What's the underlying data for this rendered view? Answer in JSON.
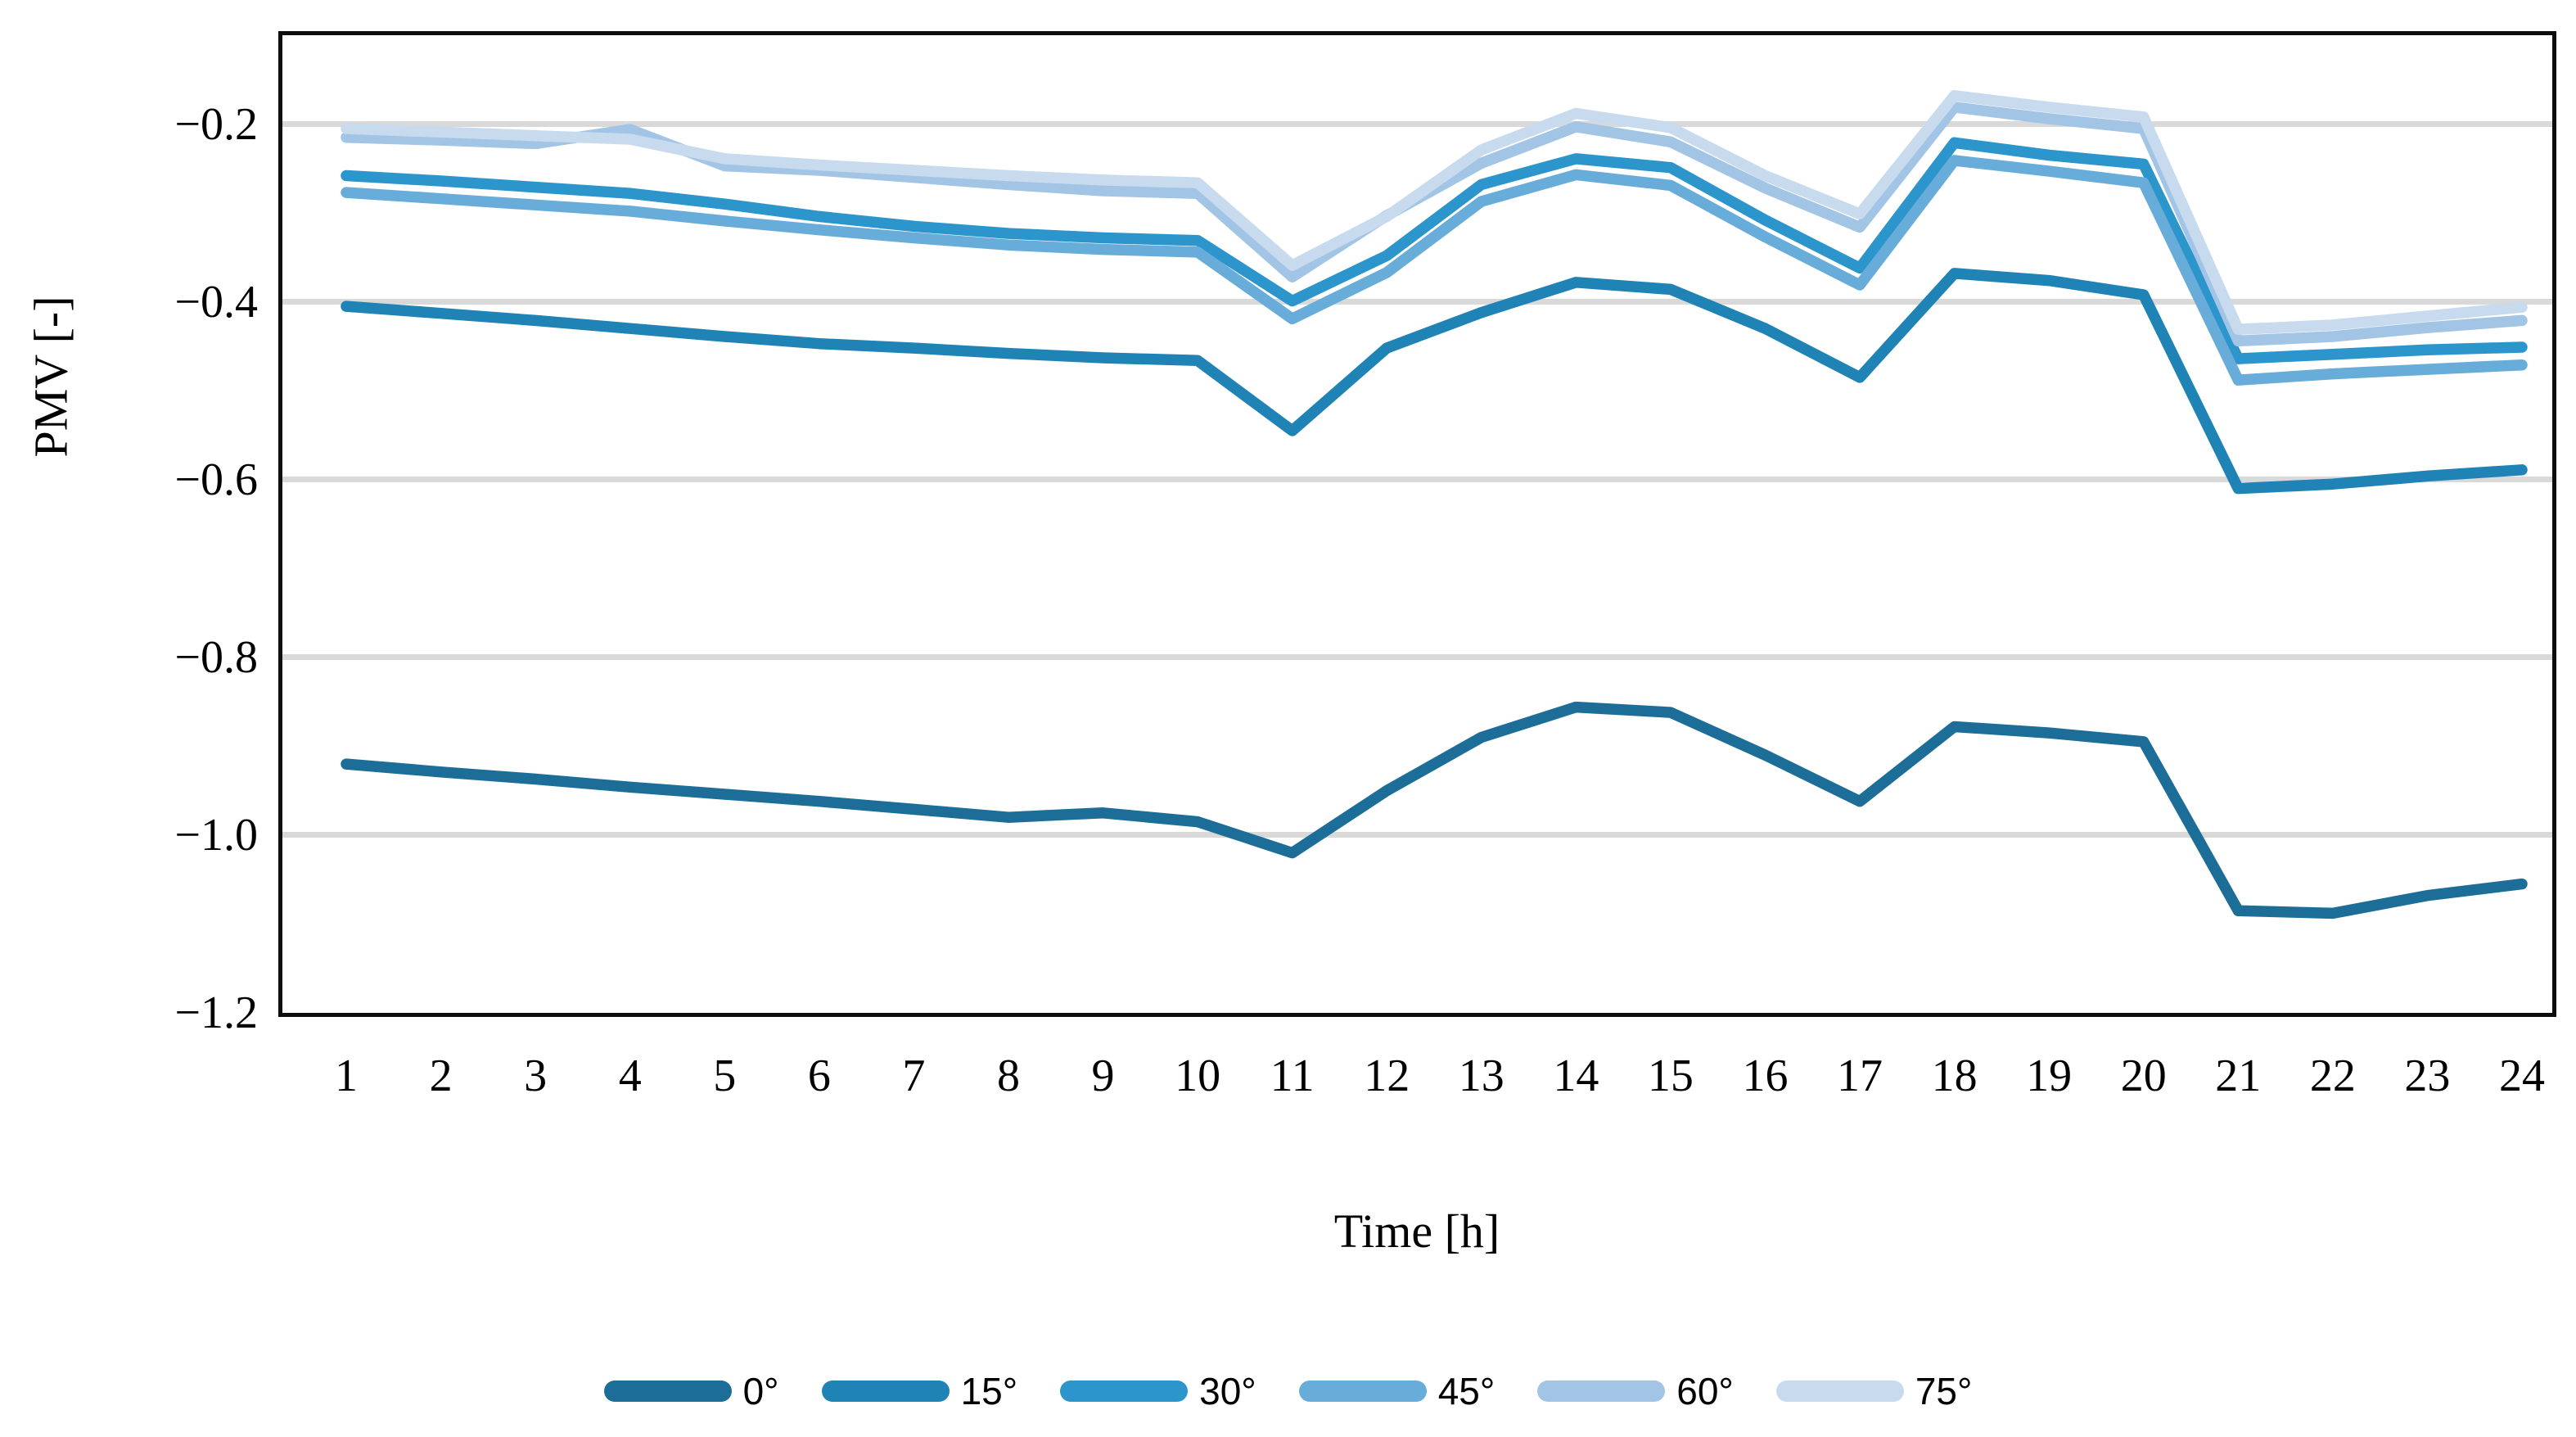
{
  "y_axis": {
    "title": "PMV [-]",
    "min": -1.2,
    "max": -0.1,
    "tick_values": [
      -0.2,
      -0.4,
      -0.6,
      -0.8,
      -1.0,
      -1.2
    ],
    "tick_labels": [
      "−0.2",
      "−0.4",
      "−0.6",
      "−0.8",
      "−1.0",
      "−1.2"
    ]
  },
  "x_axis": {
    "title": "Time [h]",
    "tick_labels": [
      "1",
      "2",
      "3",
      "4",
      "5",
      "6",
      "7",
      "8",
      "9",
      "10",
      "11",
      "12",
      "13",
      "14",
      "15",
      "16",
      "17",
      "18",
      "19",
      "20",
      "21",
      "22",
      "23",
      "24"
    ]
  },
  "colors": {
    "gridline": "#d9d9d9",
    "frame": "#0d0d0d"
  },
  "legend": [
    {
      "label": "0°",
      "color": "#1c6e99"
    },
    {
      "label": "15°",
      "color": "#1f83b5"
    },
    {
      "label": "30°",
      "color": "#2b95cc"
    },
    {
      "label": "45°",
      "color": "#68acda"
    },
    {
      "label": "60°",
      "color": "#a2c4e5"
    },
    {
      "label": "75°",
      "color": "#c8daee"
    }
  ],
  "chart_data": {
    "type": "line",
    "title": "",
    "xlabel": "Time [h]",
    "ylabel": "PMV [-]",
    "ylim": [
      -1.2,
      -0.1
    ],
    "grid": "horizontal",
    "legend_position": "bottom",
    "x": [
      1,
      2,
      3,
      4,
      5,
      6,
      7,
      8,
      9,
      10,
      11,
      12,
      13,
      14,
      15,
      16,
      17,
      18,
      19,
      20,
      21,
      22,
      23,
      24
    ],
    "series": [
      {
        "name": "0°",
        "color": "#1c6e99",
        "values": [
          -0.92,
          -0.929,
          -0.937,
          -0.946,
          -0.954,
          -0.962,
          -0.971,
          -0.98,
          -0.975,
          -0.985,
          -1.02,
          -0.95,
          -0.89,
          -0.856,
          -0.862,
          -0.91,
          -0.962,
          -0.878,
          -0.885,
          -0.895,
          -1.085,
          -1.088,
          -1.068,
          -1.055
        ]
      },
      {
        "name": "15°",
        "color": "#1f83b5",
        "values": [
          -0.405,
          -0.413,
          -0.421,
          -0.43,
          -0.439,
          -0.447,
          -0.452,
          -0.458,
          -0.463,
          -0.466,
          -0.545,
          -0.452,
          -0.412,
          -0.378,
          -0.386,
          -0.43,
          -0.485,
          -0.368,
          -0.376,
          -0.392,
          -0.61,
          -0.605,
          -0.596,
          -0.589
        ]
      },
      {
        "name": "30°",
        "color": "#2b95cc",
        "values": [
          -0.258,
          -0.264,
          -0.271,
          -0.278,
          -0.29,
          -0.304,
          -0.315,
          -0.323,
          -0.328,
          -0.331,
          -0.399,
          -0.348,
          -0.268,
          -0.239,
          -0.249,
          -0.308,
          -0.362,
          -0.221,
          -0.235,
          -0.245,
          -0.464,
          -0.459,
          -0.454,
          -0.451
        ]
      },
      {
        "name": "45°",
        "color": "#68acda",
        "values": [
          -0.277,
          -0.284,
          -0.291,
          -0.298,
          -0.309,
          -0.319,
          -0.328,
          -0.336,
          -0.341,
          -0.344,
          -0.419,
          -0.367,
          -0.287,
          -0.257,
          -0.269,
          -0.327,
          -0.381,
          -0.241,
          -0.253,
          -0.266,
          -0.488,
          -0.481,
          -0.476,
          -0.471
        ]
      },
      {
        "name": "60°",
        "color": "#a2c4e5",
        "values": [
          -0.215,
          -0.218,
          -0.222,
          -0.206,
          -0.247,
          -0.252,
          -0.26,
          -0.268,
          -0.275,
          -0.278,
          -0.372,
          -0.303,
          -0.244,
          -0.203,
          -0.22,
          -0.272,
          -0.316,
          -0.181,
          -0.194,
          -0.205,
          -0.444,
          -0.439,
          -0.429,
          -0.421
        ]
      },
      {
        "name": "75°",
        "color": "#c8daee",
        "values": [
          -0.205,
          -0.209,
          -0.213,
          -0.217,
          -0.239,
          -0.246,
          -0.252,
          -0.258,
          -0.263,
          -0.266,
          -0.359,
          -0.304,
          -0.229,
          -0.188,
          -0.204,
          -0.258,
          -0.301,
          -0.168,
          -0.181,
          -0.192,
          -0.431,
          -0.426,
          -0.416,
          -0.406
        ]
      }
    ]
  }
}
